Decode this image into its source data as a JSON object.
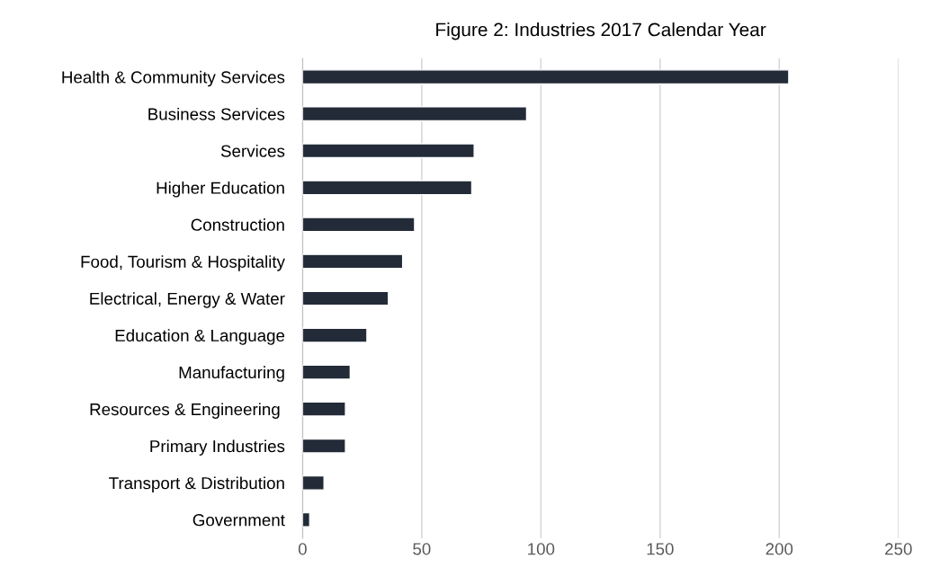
{
  "chart_data": {
    "type": "bar",
    "orientation": "horizontal",
    "title": "Figure 2: Industries 2017 Calendar Year",
    "categories": [
      "Health & Community Services",
      "Business Services",
      "Services",
      "Higher Education",
      "Construction",
      "Food, Tourism & Hospitality",
      "Electrical, Energy & Water",
      "Education & Language",
      "Manufacturing",
      "Resources & Engineering ",
      "Primary Industries",
      "Transport & Distribution",
      "Government"
    ],
    "values": [
      204,
      94,
      72,
      71,
      47,
      42,
      36,
      27,
      20,
      18,
      18,
      9,
      3
    ],
    "color": "#232b38",
    "xlim": [
      0,
      250
    ],
    "xticks": [
      0,
      50,
      100,
      150,
      200,
      250
    ],
    "grid": "x"
  }
}
